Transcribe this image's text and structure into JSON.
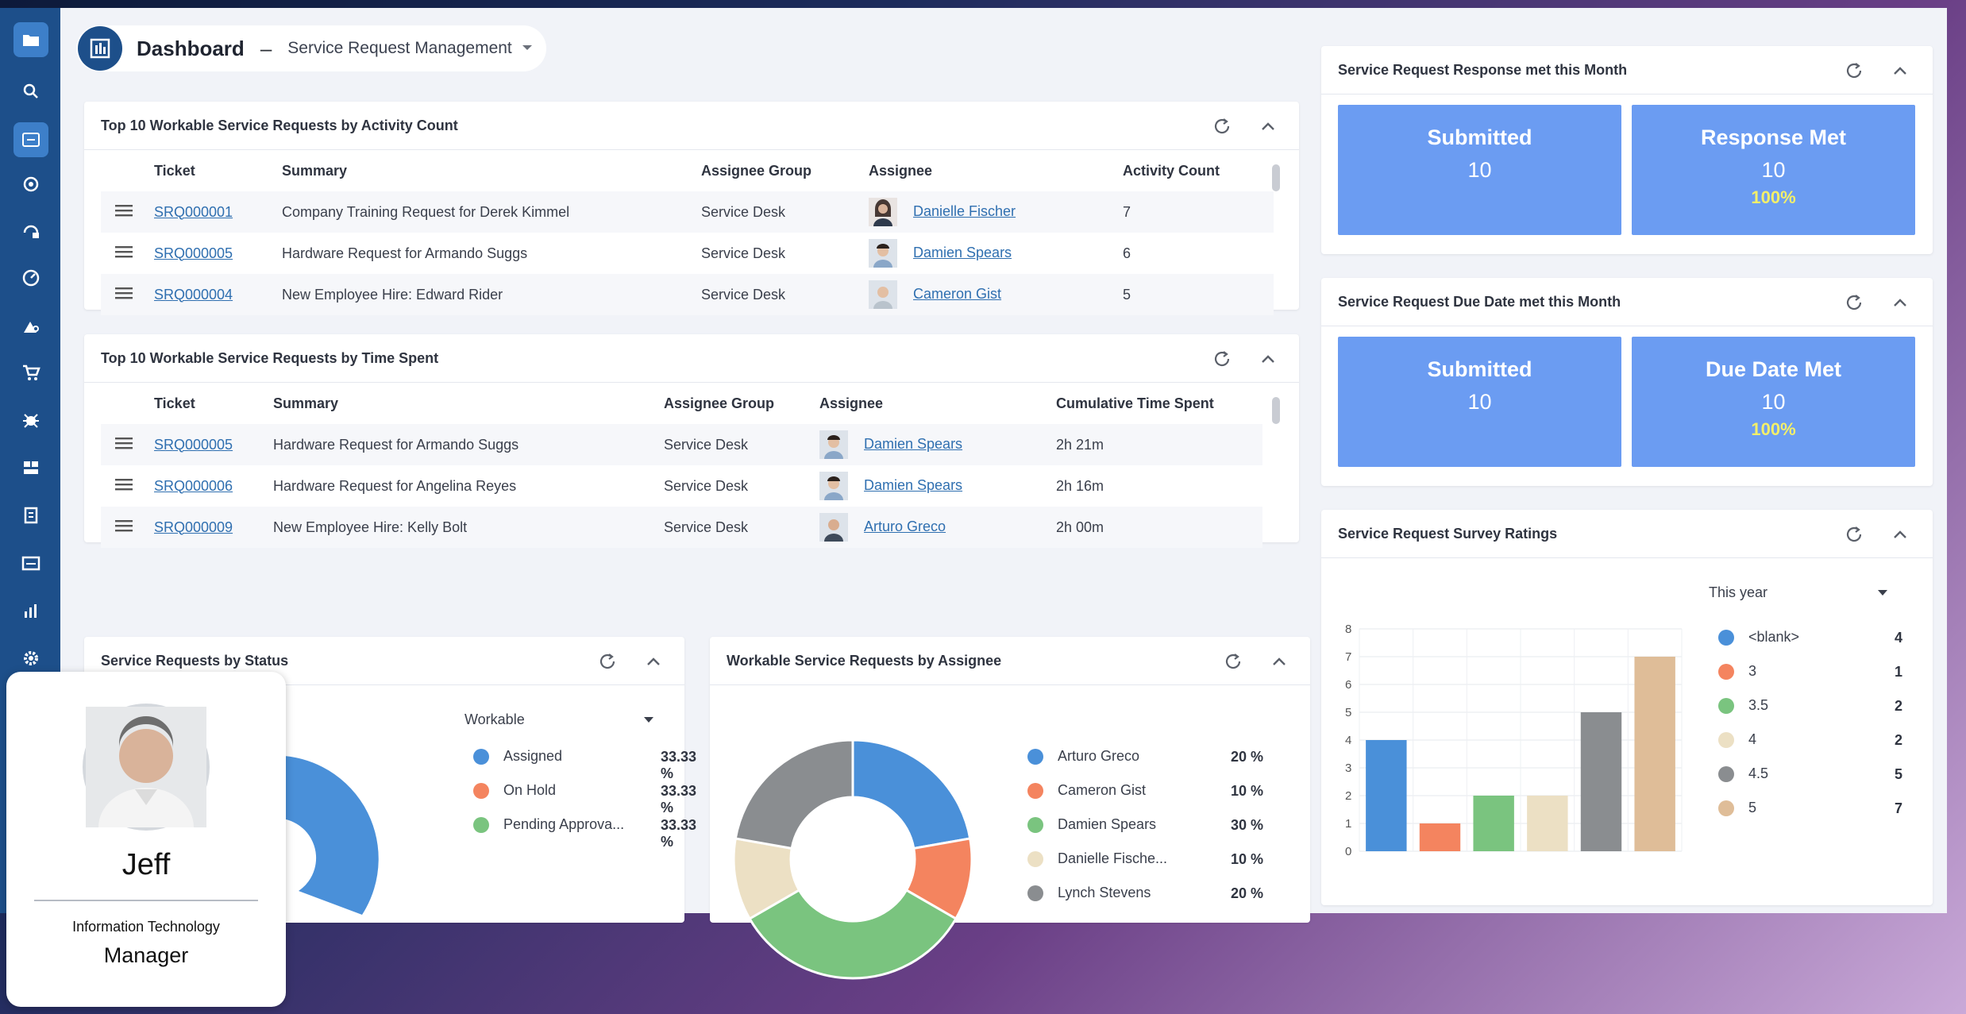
{
  "header": {
    "title": "Dashboard",
    "separator": "–",
    "dashboard_name": "Service Request Management"
  },
  "colors": {
    "accent": "#1d4f8a",
    "tile": "#6b9cf2",
    "pct": "#f3ef6a"
  },
  "activity_table": {
    "title": "Top 10 Workable Service Requests by Activity Count",
    "columns": [
      "Ticket",
      "Summary",
      "Assignee Group",
      "Assignee",
      "Activity Count"
    ],
    "rows": [
      {
        "ticket": "SRQ000001",
        "summary": "Company Training Request for Derek Kimmel",
        "group": "Service Desk",
        "assignee": "Danielle Fischer",
        "value": "7"
      },
      {
        "ticket": "SRQ000005",
        "summary": "Hardware Request for Armando Suggs",
        "group": "Service Desk",
        "assignee": "Damien Spears",
        "value": "6"
      },
      {
        "ticket": "SRQ000004",
        "summary": "New Employee Hire: Edward Rider",
        "group": "Service Desk",
        "assignee": "Cameron Gist",
        "value": "5"
      }
    ]
  },
  "time_table": {
    "title": "Top 10 Workable Service Requests by Time Spent",
    "columns": [
      "Ticket",
      "Summary",
      "Assignee Group",
      "Assignee",
      "Cumulative Time Spent"
    ],
    "rows": [
      {
        "ticket": "SRQ000005",
        "summary": "Hardware Request for Armando Suggs",
        "group": "Service Desk",
        "assignee": "Damien Spears",
        "value": "2h 21m"
      },
      {
        "ticket": "SRQ000006",
        "summary": "Hardware Request for Angelina Reyes",
        "group": "Service Desk",
        "assignee": "Damien Spears",
        "value": "2h 16m"
      },
      {
        "ticket": "SRQ000009",
        "summary": "New Employee Hire: Kelly Bolt",
        "group": "Service Desk",
        "assignee": "Arturo Greco",
        "value": "2h 00m"
      }
    ]
  },
  "response": {
    "title": "Service Request Response met this Month",
    "tiles": [
      {
        "label": "Submitted",
        "value": "10",
        "pct": ""
      },
      {
        "label": "Response Met",
        "value": "10",
        "pct": "100%"
      }
    ]
  },
  "duedate": {
    "title": "Service Request Due Date met this Month",
    "tiles": [
      {
        "label": "Submitted",
        "value": "10",
        "pct": ""
      },
      {
        "label": "Due Date Met",
        "value": "10",
        "pct": "100%"
      }
    ]
  },
  "status": {
    "title": "Service Requests by Status",
    "filter": "Workable",
    "legend": [
      {
        "label": "Assigned",
        "pct": "33.33 %",
        "color": "#4a90d9"
      },
      {
        "label": "On Hold",
        "pct": "33.33 %",
        "color": "#f4845f"
      },
      {
        "label": "Pending Approva...",
        "pct": "33.33 %",
        "color": "#7ac47f"
      }
    ]
  },
  "assignee": {
    "title": "Workable Service Requests by Assignee",
    "legend": [
      {
        "label": "Arturo Greco",
        "pct": "20 %",
        "color": "#4a90d9"
      },
      {
        "label": "Cameron Gist",
        "pct": "10 %",
        "color": "#f4845f"
      },
      {
        "label": "Damien Spears",
        "pct": "30 %",
        "color": "#7ac47f"
      },
      {
        "label": "Danielle Fische...",
        "pct": "10 %",
        "color": "#ece0c4"
      },
      {
        "label": "Lynch Stevens",
        "pct": "20 %",
        "color": "#8a8d90"
      }
    ]
  },
  "survey": {
    "title": "Service Request Survey Ratings",
    "filter": "This year",
    "legend": [
      {
        "label": "<blank>",
        "count": "4",
        "color": "#4a90d9"
      },
      {
        "label": "3",
        "count": "1",
        "color": "#f4845f"
      },
      {
        "label": "3.5",
        "count": "2",
        "color": "#7ac47f"
      },
      {
        "label": "4",
        "count": "2",
        "color": "#ece0c4"
      },
      {
        "label": "4.5",
        "count": "5",
        "color": "#8a8d90"
      },
      {
        "label": "5",
        "count": "7",
        "color": "#dfbd98"
      }
    ]
  },
  "chart_data": [
    {
      "type": "pie",
      "title": "Workable Service Requests by Assignee",
      "categories": [
        "Arturo Greco",
        "Cameron Gist",
        "Damien Spears",
        "Danielle Fische...",
        "Lynch Stevens"
      ],
      "values": [
        20,
        10,
        30,
        10,
        20
      ]
    },
    {
      "type": "bar",
      "title": "Service Request Survey Ratings",
      "categories": [
        "<blank>",
        "3",
        "3.5",
        "4",
        "4.5",
        "5"
      ],
      "values": [
        4,
        1,
        2,
        2,
        5,
        7
      ],
      "ylim": [
        0,
        8
      ],
      "yticks": [
        "0",
        "1",
        "2",
        "3",
        "4",
        "5",
        "6",
        "7",
        "8"
      ]
    }
  ],
  "profile": {
    "name": "Jeff",
    "department": "Information Technology",
    "role": "Manager"
  }
}
